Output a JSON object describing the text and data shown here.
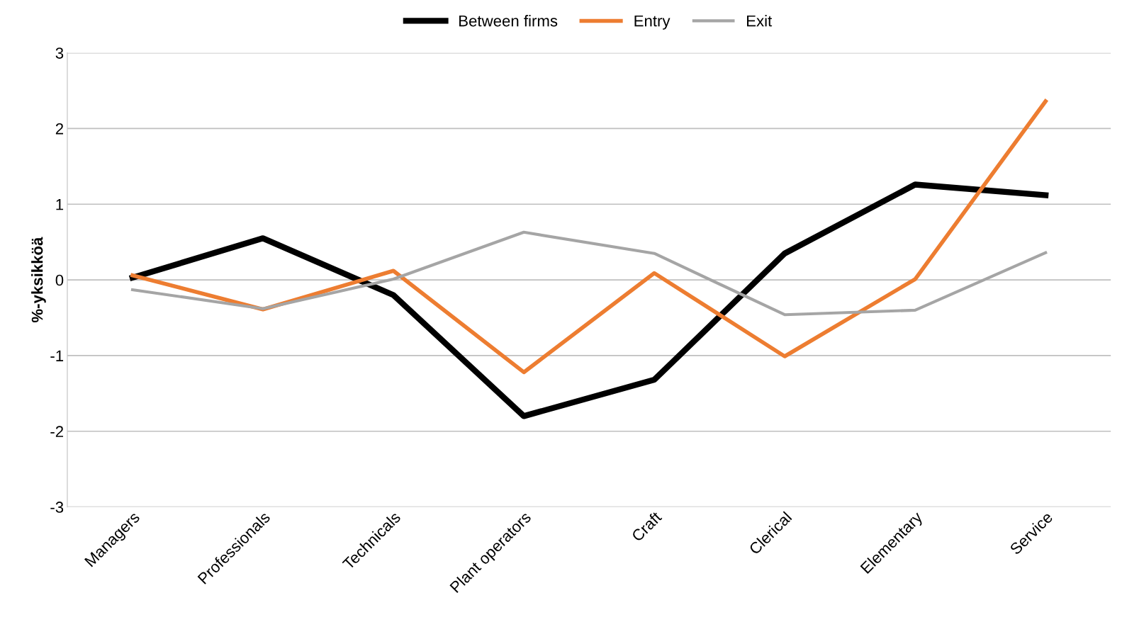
{
  "chart_data": {
    "type": "line",
    "ylabel": "%-yksikköä",
    "categories": [
      "Managers",
      "Professionals",
      "Technicals",
      "Plant operators",
      "Craft",
      "Clerical",
      "Elementary",
      "Service"
    ],
    "series": [
      {
        "name": "Between firms",
        "color": "#000000",
        "values": [
          0.03,
          0.55,
          -0.2,
          -1.8,
          -1.32,
          0.35,
          1.26,
          1.12
        ]
      },
      {
        "name": "Entry",
        "color": "#ed7d31",
        "values": [
          0.06,
          -0.39,
          0.12,
          -1.22,
          0.09,
          -1.01,
          0.01,
          2.36
        ]
      },
      {
        "name": "Exit",
        "color": "#a5a5a5",
        "values": [
          -0.13,
          -0.38,
          0.01,
          0.63,
          0.35,
          -0.46,
          -0.4,
          0.36
        ]
      }
    ],
    "ylim": [
      -3,
      3
    ],
    "yticks": [
      -3,
      -2,
      -1,
      0,
      1,
      2,
      3
    ],
    "grid": "y",
    "legend": "top",
    "marker": "none",
    "line_style": "solid"
  }
}
